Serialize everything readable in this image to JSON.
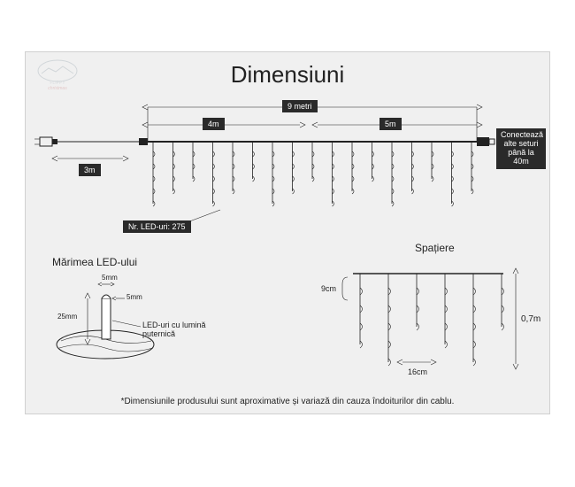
{
  "title": "Dimensiuni",
  "main": {
    "total_length": "9 metri",
    "segment_a": "4m",
    "segment_b": "5m",
    "cable_length": "3m",
    "led_count_label": "Nr. LED-uri: 275",
    "connect_lines": [
      "Conectează",
      "alte seturi",
      "până la 40m"
    ],
    "icicle_lengths": [
      5,
      4,
      3,
      5,
      4,
      3,
      5,
      4,
      3,
      5,
      4,
      3,
      5,
      4,
      3,
      5,
      4
    ]
  },
  "led_size": {
    "title": "Mărimea LED-ului",
    "top_dim": "5mm",
    "side_dim": "5mm",
    "height_dim": "25mm",
    "caption_lines": [
      "LED-uri cu lumină",
      "puternică"
    ]
  },
  "spacing": {
    "title": "Spațiere",
    "vgap": "9cm",
    "hgap": "16cm",
    "height": "0,7m",
    "icicle_lengths": [
      4,
      5,
      3,
      4,
      5,
      3
    ]
  },
  "disclaimer": "*Dimensiunile produsului sunt aproximative și variază din cauza îndoiturilor din cablu.",
  "colors": {
    "bg": "#f0f0f0",
    "box": "#2a2a2a",
    "line": "#222222"
  }
}
